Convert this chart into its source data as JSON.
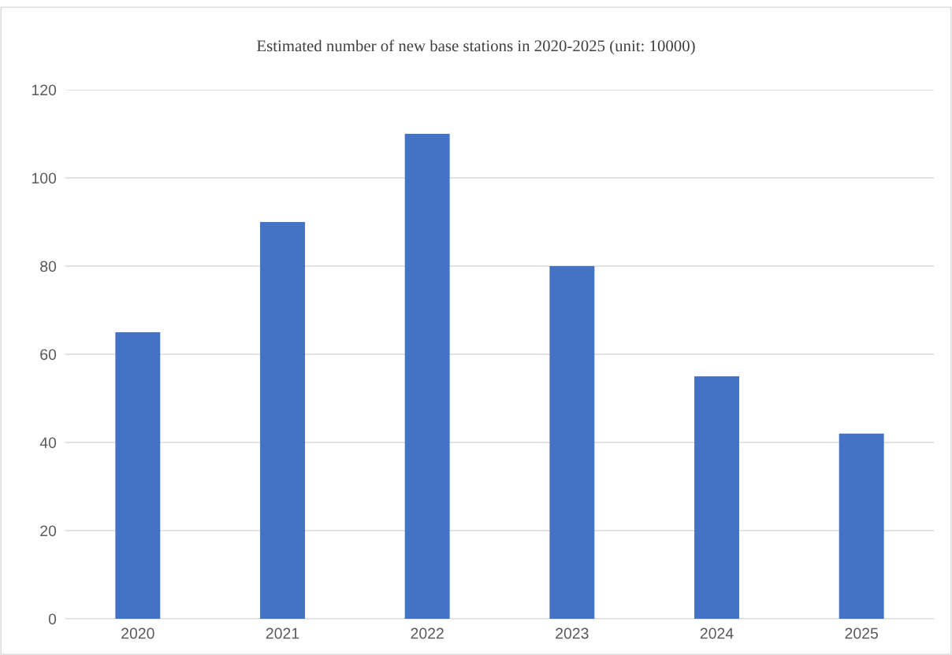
{
  "chart_data": {
    "type": "bar",
    "title": "Estimated number of new base stations in 2020-2025 (unit: 10000)",
    "categories": [
      "2020",
      "2021",
      "2022",
      "2023",
      "2024",
      "2025"
    ],
    "values": [
      65,
      90,
      110,
      80,
      55,
      42
    ],
    "color": "#4472c4",
    "ylim": [
      0,
      120
    ],
    "yticks": [
      0,
      20,
      40,
      60,
      80,
      100,
      120
    ],
    "grid": "y",
    "legend": false
  }
}
